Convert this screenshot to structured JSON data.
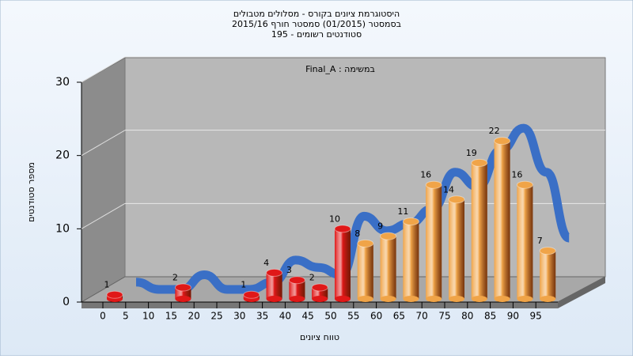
{
  "chart_data": {
    "type": "bar3d",
    "title": "היסטוגרמת ציונים בקורס - מסלולים מטבולים",
    "subtitle": "בסמסטר  (01/2015)  סמסטר חורף 2015/16",
    "subtitle2": "195 - סטודנטים רשומים",
    "annotation": "Final_A : במשימה",
    "y_label": "מספר סטודנטים",
    "x_label": "טווח ציונים",
    "categories": [
      "0",
      "5",
      "10",
      "15",
      "20",
      "25",
      "30",
      "35",
      "40",
      "45",
      "50",
      "55",
      "60",
      "65",
      "70",
      "75",
      "80",
      "85",
      "90",
      "95"
    ],
    "values": [
      1,
      0,
      0,
      2,
      0,
      0,
      1,
      4,
      3,
      2,
      10,
      8,
      9,
      11,
      16,
      14,
      19,
      22,
      16,
      7
    ],
    "colors": [
      "#e01818",
      "#e01818",
      "#e01818",
      "#e01818",
      "#e01818",
      "#e01818",
      "#e01818",
      "#e01818",
      "#e01818",
      "#e01818",
      "#e01818",
      "#f0a448",
      "#f0a448",
      "#f0a448",
      "#f0a448",
      "#f0a448",
      "#f0a448",
      "#f0a448",
      "#f0a448",
      "#f0a448"
    ],
    "trend_color": "#3a6fc6",
    "ylim": [
      0,
      30
    ],
    "yticks": [
      0,
      10,
      20,
      30
    ],
    "grid": true
  }
}
